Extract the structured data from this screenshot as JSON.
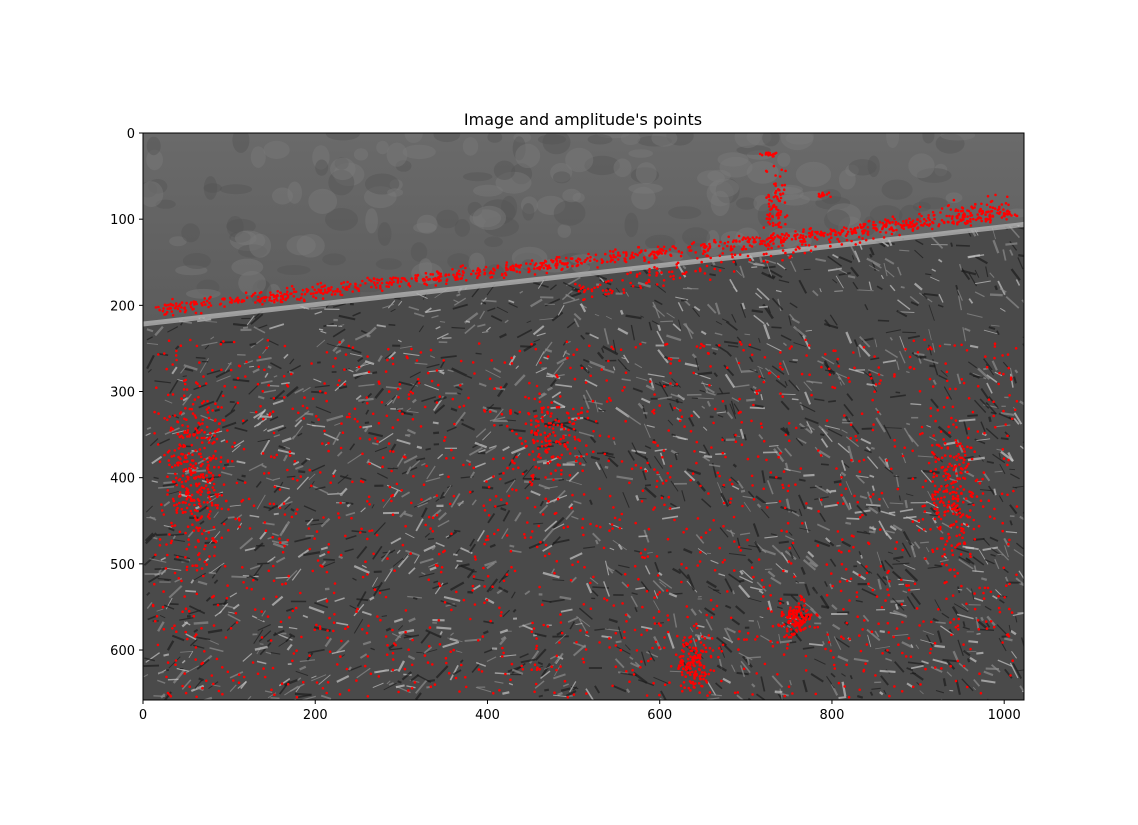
{
  "chart_data": {
    "type": "scatter",
    "title": "Image and amplitude's points",
    "xlabel": "",
    "ylabel": "",
    "xlim": [
      0,
      1023
    ],
    "ylim": [
      658,
      0
    ],
    "y_axis_inverted": true,
    "grid": false,
    "background": "grayscale micrograph image (upper region: smooth gray grains; boundary band along y≈100–230; lower region: dark needle/lath texture)",
    "x_ticks": [
      0,
      200,
      400,
      600,
      800,
      1000
    ],
    "x_tick_labels": [
      "0",
      "200",
      "400",
      "600",
      "800",
      "1000"
    ],
    "y_ticks": [
      0,
      100,
      200,
      300,
      400,
      500,
      600
    ],
    "y_tick_labels": [
      "0",
      "100",
      "200",
      "300",
      "400",
      "500",
      "600"
    ],
    "series": [
      {
        "name": "amplitude's points",
        "color": "#ff0000",
        "marker": "dot",
        "clusters": [
          {
            "region": "boundary-line",
            "x_from": 15,
            "y_from": 205,
            "x_to": 1015,
            "y_to": 92,
            "spread": 12,
            "count": 900
          },
          {
            "region": "boundary-upper",
            "x_from": 500,
            "y_from": 185,
            "x_to": 1010,
            "y_to": 80,
            "spread": 20,
            "count": 220
          },
          {
            "region": "column-near-740",
            "cx": 735,
            "cy": 90,
            "rx": 20,
            "ry": 70,
            "count": 90
          },
          {
            "region": "top-spot",
            "cx": 728,
            "cy": 25,
            "rx": 14,
            "ry": 4,
            "count": 20
          },
          {
            "region": "spot-near-790",
            "cx": 790,
            "cy": 72,
            "rx": 12,
            "ry": 6,
            "count": 14
          },
          {
            "region": "left-band",
            "cx": 60,
            "cy": 400,
            "rx": 50,
            "ry": 150,
            "count": 320
          },
          {
            "region": "lower-spread",
            "x0": 10,
            "x1": 1015,
            "y0": 240,
            "y1": 655,
            "count": 1500
          },
          {
            "region": "cluster-near-640",
            "cx": 640,
            "cy": 615,
            "rx": 30,
            "ry": 45,
            "count": 140
          },
          {
            "region": "cluster-near-760",
            "cx": 760,
            "cy": 565,
            "rx": 30,
            "ry": 30,
            "count": 120
          },
          {
            "region": "right-band",
            "cx": 940,
            "cy": 420,
            "rx": 40,
            "ry": 120,
            "count": 220
          },
          {
            "region": "center-band",
            "cx": 470,
            "cy": 350,
            "rx": 70,
            "ry": 60,
            "count": 130
          }
        ]
      }
    ]
  }
}
